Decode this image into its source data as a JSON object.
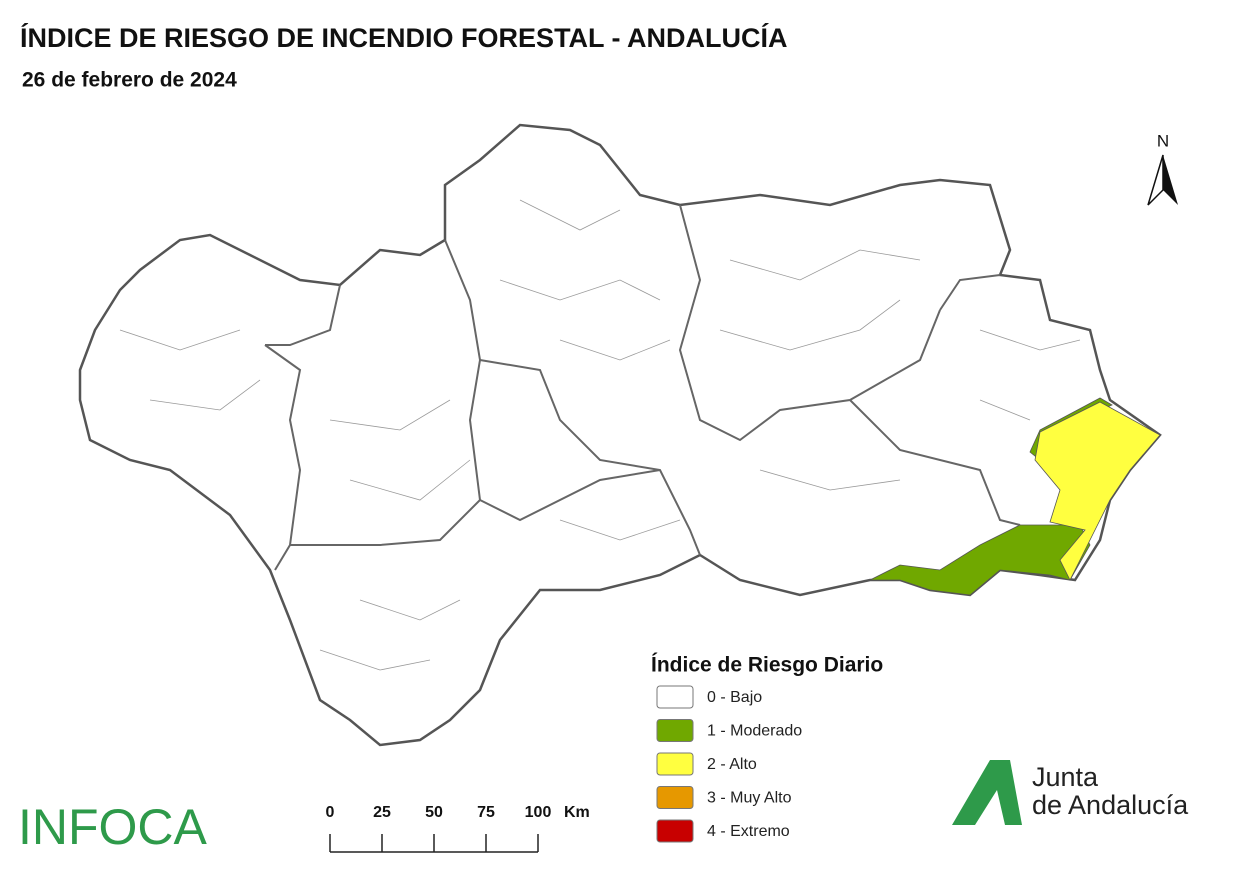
{
  "header": {
    "title": "ÍNDICE DE RIESGO DE INCENDIO FORESTAL - ANDALUCÍA",
    "date": "26 de febrero de 2024"
  },
  "north": "N",
  "legend": {
    "title": "Índice de Riesgo Diario",
    "items": [
      {
        "label": "0 - Bajo",
        "color": "#ffffff"
      },
      {
        "label": "1 - Moderado",
        "color": "#70a800"
      },
      {
        "label": "2 - Alto",
        "color": "#ffff40"
      },
      {
        "label": "3 - Muy Alto",
        "color": "#e69800"
      },
      {
        "label": "4 - Extremo",
        "color": "#c80000"
      }
    ]
  },
  "scale": {
    "labels": [
      "0",
      "25",
      "50",
      "75",
      "100"
    ],
    "unit": "Km"
  },
  "logos": {
    "infoca": "INFOCA",
    "junta": [
      "Junta",
      "de Andalucía"
    ]
  }
}
